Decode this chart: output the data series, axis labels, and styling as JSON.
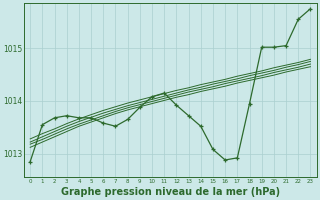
{
  "bg_color": "#cce8e8",
  "line_color": "#2d6a2d",
  "grid_color": "#aacfcf",
  "xlabel": "Graphe pression niveau de la mer (hPa)",
  "xlabel_fontsize": 7,
  "xlim": [
    -0.5,
    23.5
  ],
  "ylim": [
    1012.55,
    1015.85
  ],
  "yticks": [
    1013,
    1014,
    1015
  ],
  "xticks": [
    0,
    1,
    2,
    3,
    4,
    5,
    6,
    7,
    8,
    9,
    10,
    11,
    12,
    13,
    14,
    15,
    16,
    17,
    18,
    19,
    20,
    21,
    22,
    23
  ],
  "main_line": [
    1012.85,
    1013.55,
    1013.68,
    1013.72,
    1013.68,
    1013.68,
    1013.58,
    1013.52,
    1013.65,
    1013.88,
    1014.08,
    1014.15,
    1013.92,
    1013.72,
    1013.52,
    1013.08,
    1012.88,
    1012.92,
    1013.95,
    1015.02,
    1015.02,
    1015.05,
    1015.55,
    1015.75
  ],
  "smooth_line1": [
    1013.12,
    1013.22,
    1013.32,
    1013.42,
    1013.52,
    1013.6,
    1013.68,
    1013.76,
    1013.83,
    1013.89,
    1013.95,
    1014.01,
    1014.07,
    1014.12,
    1014.18,
    1014.23,
    1014.28,
    1014.34,
    1014.39,
    1014.44,
    1014.49,
    1014.55,
    1014.6,
    1014.65
  ],
  "smooth_line2": [
    1013.18,
    1013.27,
    1013.37,
    1013.47,
    1013.56,
    1013.64,
    1013.72,
    1013.8,
    1013.87,
    1013.93,
    1013.99,
    1014.05,
    1014.11,
    1014.17,
    1014.22,
    1014.27,
    1014.33,
    1014.38,
    1014.43,
    1014.48,
    1014.54,
    1014.59,
    1014.64,
    1014.7
  ],
  "smooth_line3": [
    1013.22,
    1013.32,
    1013.42,
    1013.52,
    1013.61,
    1013.69,
    1013.77,
    1013.84,
    1013.91,
    1013.97,
    1014.03,
    1014.09,
    1014.15,
    1014.21,
    1014.26,
    1014.32,
    1014.37,
    1014.42,
    1014.48,
    1014.53,
    1014.58,
    1014.64,
    1014.69,
    1014.75
  ],
  "smooth_line4": [
    1013.28,
    1013.38,
    1013.47,
    1013.57,
    1013.66,
    1013.74,
    1013.82,
    1013.89,
    1013.96,
    1014.02,
    1014.08,
    1014.14,
    1014.2,
    1014.25,
    1014.31,
    1014.36,
    1014.41,
    1014.47,
    1014.52,
    1014.57,
    1014.63,
    1014.68,
    1014.73,
    1014.79
  ]
}
